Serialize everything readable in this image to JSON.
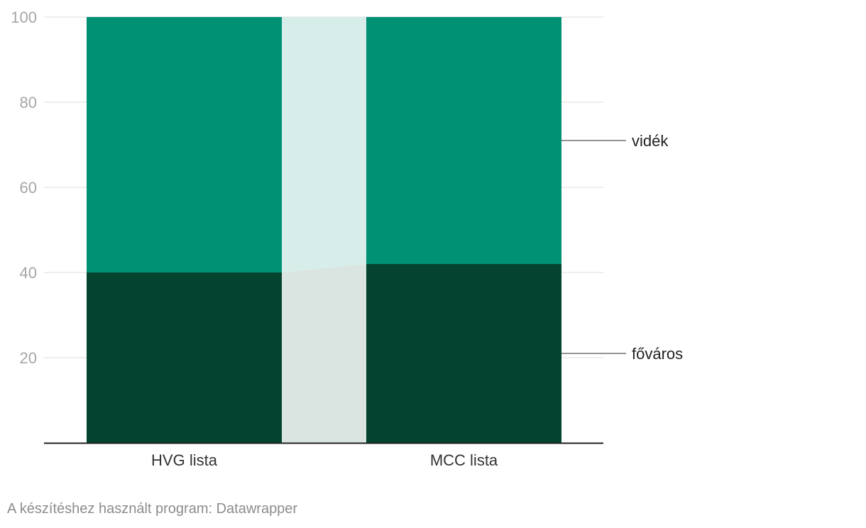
{
  "chart_data": {
    "type": "bar",
    "stacked": true,
    "categories": [
      "HVG lista",
      "MCC lista"
    ],
    "series": [
      {
        "name": "főváros",
        "values": [
          40,
          42
        ],
        "color": "#03432f"
      },
      {
        "name": "vidék",
        "values": [
          60,
          58
        ],
        "color": "#009073"
      }
    ],
    "ylim": [
      0,
      100
    ],
    "yticks": [
      20,
      40,
      60,
      80,
      100
    ],
    "grid": true,
    "legend": "right-labels",
    "connector_colors": {
      "lower": "#dae5e1",
      "upper": "#d7ede9"
    },
    "gridline_color": "#dddddd",
    "axis_color": "#222222"
  },
  "footer": {
    "credit": "A készítéshez használt program: Datawrapper"
  }
}
